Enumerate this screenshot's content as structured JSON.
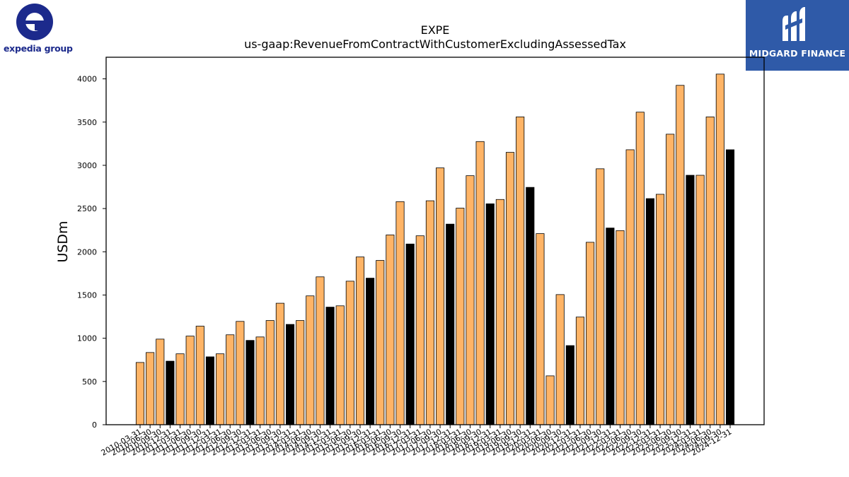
{
  "logos": {
    "left_text": "expedia group",
    "left_icon": "expedia-e-icon",
    "right_text": "MIDGARD FINANCE",
    "right_icon": "midgard-m-icon",
    "right_bg": "#2f5aa8",
    "left_color": "#1c2a8c"
  },
  "chart_data": {
    "type": "bar",
    "title": "EXPE",
    "subtitle": "us-gaap:RevenueFromContractWithCustomerExcludingAssessedTax",
    "xlabel": "",
    "ylabel": "USDm",
    "ylim": [
      0,
      4250
    ],
    "yticks": [
      0,
      500,
      1000,
      1500,
      2000,
      2500,
      3000,
      3500,
      4000
    ],
    "grid": false,
    "colors": {
      "regular": "#ffb466",
      "annual": "#000000",
      "edge": "#000000"
    },
    "categories": [
      "2010-03-31",
      "2010-06-30",
      "2010-09-30",
      "2010-12-31",
      "2011-03-31",
      "2011-06-30",
      "2011-09-30",
      "2011-12-31",
      "2012-03-31",
      "2012-06-30",
      "2012-09-30",
      "2012-12-31",
      "2013-03-31",
      "2013-06-30",
      "2013-09-30",
      "2013-12-31",
      "2014-03-31",
      "2014-06-30",
      "2014-09-30",
      "2014-12-31",
      "2015-03-31",
      "2015-06-30",
      "2015-09-30",
      "2015-12-31",
      "2016-03-31",
      "2016-06-30",
      "2016-09-30",
      "2016-12-31",
      "2017-03-31",
      "2017-06-30",
      "2017-09-30",
      "2017-12-31",
      "2018-03-31",
      "2018-06-30",
      "2018-09-30",
      "2018-12-31",
      "2019-03-31",
      "2019-06-30",
      "2019-09-30",
      "2019-12-31",
      "2020-03-31",
      "2020-06-30",
      "2020-09-30",
      "2020-12-31",
      "2021-03-31",
      "2021-06-30",
      "2021-09-30",
      "2021-12-31",
      "2022-03-31",
      "2022-06-30",
      "2022-09-30",
      "2022-12-31",
      "2023-03-31",
      "2023-06-30",
      "2023-09-30",
      "2023-12-31",
      "2024-03-31",
      "2024-06-30",
      "2024-09-30",
      "2024-12-31"
    ],
    "values": [
      720,
      835,
      990,
      735,
      820,
      1025,
      1140,
      785,
      820,
      1040,
      1195,
      975,
      1015,
      1205,
      1405,
      1160,
      1205,
      1490,
      1710,
      1360,
      1375,
      1660,
      1940,
      1695,
      1900,
      2195,
      2580,
      2090,
      2185,
      2590,
      2970,
      2320,
      2505,
      2880,
      3275,
      2555,
      2605,
      3150,
      3560,
      2745,
      2210,
      565,
      1505,
      915,
      1245,
      2110,
      2960,
      2275,
      2245,
      3180,
      3615,
      2615,
      2665,
      3360,
      3925,
      2885,
      2885,
      3560,
      4055,
      3180
    ],
    "annual_flags": [
      0,
      0,
      0,
      1,
      0,
      0,
      0,
      1,
      0,
      0,
      0,
      1,
      0,
      0,
      0,
      1,
      0,
      0,
      0,
      1,
      0,
      0,
      0,
      1,
      0,
      0,
      0,
      1,
      0,
      0,
      0,
      1,
      0,
      0,
      0,
      1,
      0,
      0,
      0,
      1,
      0,
      0,
      0,
      1,
      0,
      0,
      0,
      1,
      0,
      0,
      0,
      1,
      0,
      0,
      0,
      1,
      0,
      0,
      0,
      1
    ]
  }
}
